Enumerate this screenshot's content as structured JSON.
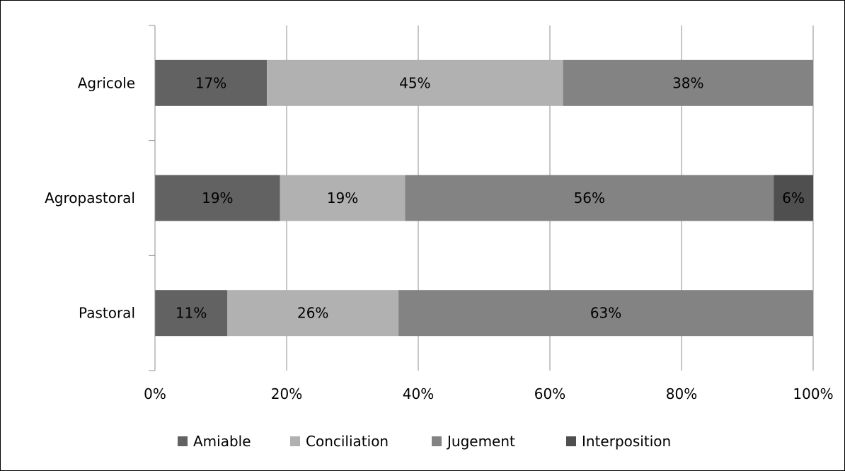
{
  "chart_data": {
    "type": "bar",
    "orientation": "horizontal",
    "stacked": "percent",
    "categories": [
      "Agricole",
      "Agropastoral",
      "Pastoral"
    ],
    "series": [
      {
        "name": "Amiable",
        "values": [
          17,
          19,
          11
        ],
        "color": "#626262"
      },
      {
        "name": "Conciliation",
        "values": [
          45,
          19,
          26
        ],
        "color": "#b1b1b1"
      },
      {
        "name": "Jugement",
        "values": [
          38,
          56,
          63
        ],
        "color": "#838383"
      },
      {
        "name": "Interposition",
        "values": [
          0,
          6,
          0
        ],
        "color": "#4f4f4f"
      }
    ],
    "x_ticks": [
      "0%",
      "20%",
      "40%",
      "60%",
      "80%",
      "100%"
    ],
    "xlim": [
      0,
      100
    ],
    "grid": "vertical",
    "legend_position": "bottom",
    "data_labels": true,
    "title": "",
    "xlabel": "",
    "ylabel": ""
  }
}
